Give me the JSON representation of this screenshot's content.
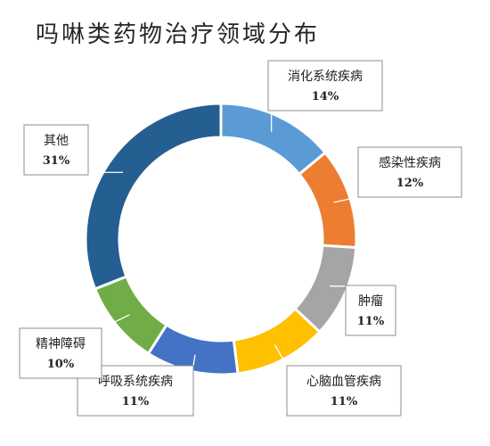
{
  "chart_data": {
    "type": "pie",
    "style": "donut",
    "title": "吗啉类药物治疗领域分布",
    "unit": "%",
    "categories": [
      "消化系统疾病",
      "感染性疾病",
      "肿瘤",
      "心脑血管疾病",
      "呼吸系统疾病",
      "精神障碍",
      "其他"
    ],
    "values": [
      14,
      12,
      11,
      11,
      11,
      10,
      31
    ],
    "value_labels": [
      "14%",
      "12%",
      "11%",
      "11%",
      "11%",
      "10%",
      "31%"
    ],
    "colors": [
      "#5b9bd5",
      "#ed7d31",
      "#a5a5a5",
      "#ffc000",
      "#4472c4",
      "#70ad47",
      "#255e91"
    ],
    "legend": "none",
    "labels": "callouts"
  }
}
